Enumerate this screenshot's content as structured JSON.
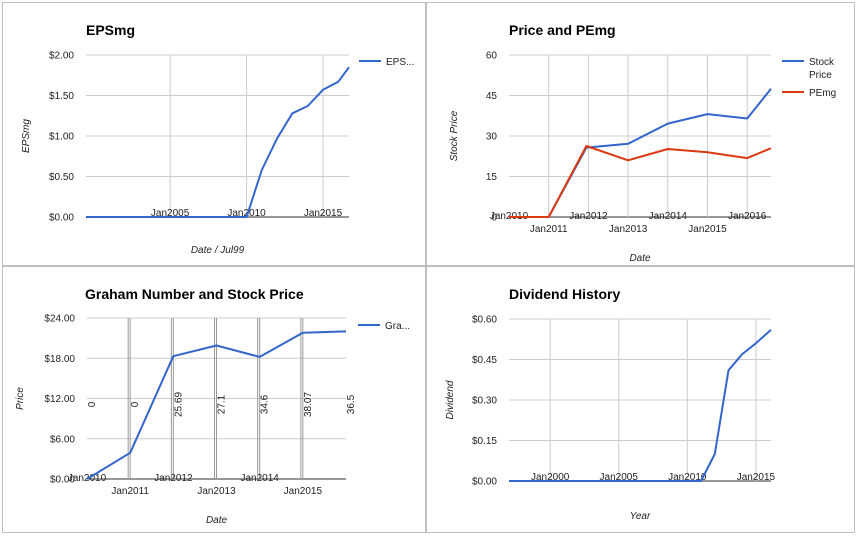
{
  "chart_data": [
    {
      "type": "line",
      "title": "EPSmg",
      "xlabel": "Date / Jul99",
      "ylabel": "EPSmg",
      "x_ticks": [
        "Jan2005",
        "Jan2010",
        "Jan2015"
      ],
      "y_ticks": [
        "$0.00",
        "$0.50",
        "$1.00",
        "$1.50",
        "$2.00"
      ],
      "ylim": [
        0,
        2
      ],
      "xlim": [
        1999.5,
        2016.7
      ],
      "legend": "right",
      "grid": true,
      "series": [
        {
          "name": "EPS...",
          "color": "#3366cc",
          "x": [
            1999.5,
            2010.0,
            2011.0,
            2012.0,
            2013.0,
            2014.0,
            2015.0,
            2016.0,
            2016.7
          ],
          "values": [
            0,
            0,
            0.58,
            0.97,
            1.28,
            1.37,
            1.57,
            1.67,
            1.85
          ]
        }
      ]
    },
    {
      "type": "line",
      "title": "Price and PEmg",
      "xlabel": "Date",
      "ylabel": "Stock Price",
      "x_ticks": [
        "Jan2010",
        "Jan2011",
        "Jan2012",
        "Jan2013",
        "Jan2014",
        "Jan2015",
        "Jan2016"
      ],
      "y_ticks": [
        "0",
        "15",
        "30",
        "45",
        "60"
      ],
      "ylim": [
        0,
        60
      ],
      "xlim": [
        2010.0,
        2016.6
      ],
      "legend": "right",
      "grid": true,
      "series": [
        {
          "name": "Stock Price",
          "color": "#3366cc",
          "x": [
            2010.0,
            2011.0,
            2011.95,
            2013.0,
            2014.0,
            2015.0,
            2016.0,
            2016.6
          ],
          "values": [
            0,
            0,
            25.7,
            27.1,
            34.6,
            38.1,
            36.5,
            47.5
          ]
        },
        {
          "name": "PEmg",
          "color": "#dc3912",
          "x": [
            2010.0,
            2011.0,
            2011.95,
            2013.0,
            2014.0,
            2015.0,
            2016.0,
            2016.6
          ],
          "values": [
            0,
            0,
            26.3,
            21.0,
            25.2,
            24.0,
            21.8,
            25.5
          ]
        }
      ]
    },
    {
      "type": "line",
      "title": "Graham Number and Stock Price",
      "xlabel": "Date",
      "ylabel": "Price",
      "x_ticks": [
        "Jan2010",
        "Jan2011",
        "Jan2012",
        "Jan2013",
        "Jan2014",
        "Jan2015"
      ],
      "y_ticks": [
        "$0.00",
        "$6.00",
        "$12.00",
        "$18.00",
        "$24.00"
      ],
      "ylim": [
        0,
        24
      ],
      "xlim": [
        2010.0,
        2016.0
      ],
      "legend": "right",
      "grid": true,
      "annotations": [
        {
          "x": 2010.0,
          "text": "0"
        },
        {
          "x": 2011.0,
          "text": "0"
        },
        {
          "x": 2012.0,
          "text": "25.69"
        },
        {
          "x": 2013.0,
          "text": "27.1"
        },
        {
          "x": 2014.0,
          "text": "34.6"
        },
        {
          "x": 2015.0,
          "text": "38.07"
        },
        {
          "x": 2016.0,
          "text": "36.5"
        }
      ],
      "series": [
        {
          "name": "Gra...",
          "color": "#3366cc",
          "x": [
            2010.0,
            2011.0,
            2012.0,
            2013.0,
            2014.0,
            2015.0,
            2016.0
          ],
          "values": [
            0,
            3.9,
            18.3,
            19.9,
            18.2,
            21.8,
            22.0
          ]
        }
      ]
    },
    {
      "type": "line",
      "title": "Dividend History",
      "xlabel": "Year",
      "ylabel": "Dividend",
      "x_ticks": [
        "Jan2000",
        "Jan2005",
        "Jan2010",
        "Jan2015"
      ],
      "y_ticks": [
        "$0.00",
        "$0.15",
        "$0.30",
        "$0.45",
        "$0.60"
      ],
      "ylim": [
        0,
        0.6
      ],
      "xlim": [
        1997.0,
        2016.1
      ],
      "legend": "none",
      "grid": true,
      "series": [
        {
          "name": "",
          "color": "#3366cc",
          "x": [
            1997.0,
            2011.0,
            2012.0,
            2013.0,
            2014.0,
            2015.0,
            2016.1
          ],
          "values": [
            0,
            0,
            0.1,
            0.41,
            0.47,
            0.51,
            0.56
          ]
        }
      ]
    }
  ]
}
